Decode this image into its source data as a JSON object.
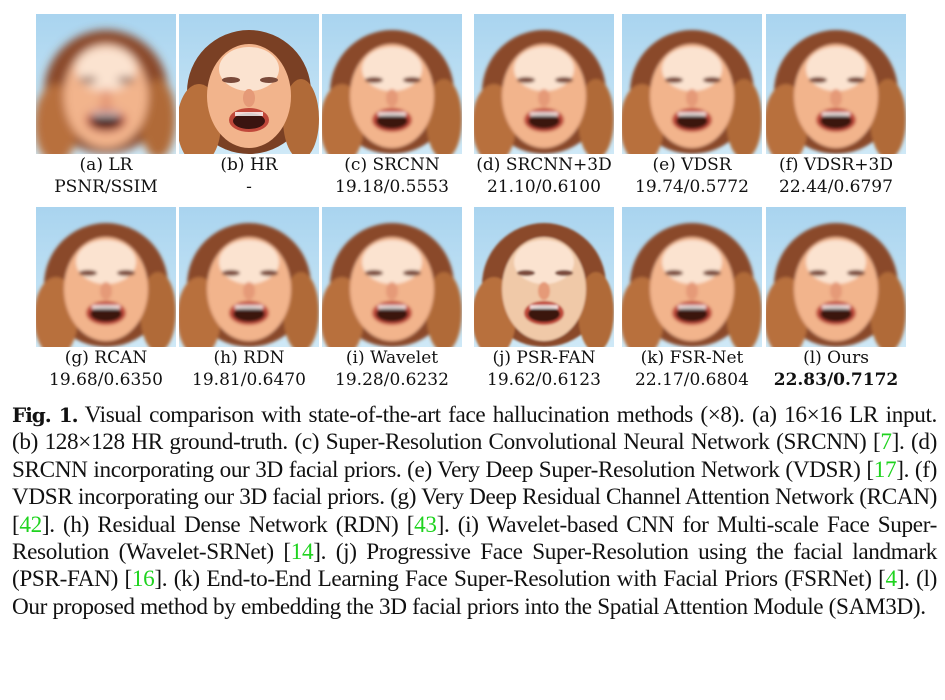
{
  "figure": {
    "rows": [
      [
        {
          "id": "a",
          "label": "(a) LR",
          "value": "PSNR/SSIM",
          "bold": false,
          "style": "blurry"
        },
        {
          "id": "b",
          "label": "(b) HR",
          "value": "-",
          "bold": false,
          "style": "sharp"
        },
        {
          "id": "c",
          "label": "(c) SRCNN",
          "value": "19.18/0.5553",
          "bold": false,
          "style": "soft"
        },
        {
          "id": "d",
          "label": "(d) SRCNN+3D",
          "value": "21.10/0.6100",
          "bold": false,
          "style": "soft"
        },
        {
          "id": "e",
          "label": "(e) VDSR",
          "value": "19.74/0.5772",
          "bold": false,
          "style": "soft"
        },
        {
          "id": "f",
          "label": "(f) VDSR+3D",
          "value": "22.44/0.6797",
          "bold": false,
          "style": "soft"
        }
      ],
      [
        {
          "id": "g",
          "label": "(g) RCAN",
          "value": "19.68/0.6350",
          "bold": false,
          "style": "soft"
        },
        {
          "id": "h",
          "label": "(h) RDN",
          "value": "19.81/0.6470",
          "bold": false,
          "style": "soft"
        },
        {
          "id": "i",
          "label": "(i) Wavelet",
          "value": "19.28/0.6232",
          "bold": false,
          "style": "soft"
        },
        {
          "id": "j",
          "label": "(j) PSR-FAN",
          "value": "19.62/0.6123",
          "bold": false,
          "style": "distorted"
        },
        {
          "id": "k",
          "label": "(k) FSR-Net",
          "value": "22.17/0.6804",
          "bold": false,
          "style": "soft"
        },
        {
          "id": "l",
          "label": "(l) Ours",
          "value": "22.83/0.7172",
          "bold": true,
          "style": "soft"
        }
      ]
    ]
  },
  "caption": {
    "fig_label": "Fig. 1.",
    "segments": [
      {
        "t": " Visual comparison with state-of-the-art face hallucination methods (×8). (a) 16×16 LR input. (b) 128×128 HR ground-truth. (c) Super-Resolution Convolutional Neural Network (SRCNN) ["
      },
      {
        "t": "7",
        "ref": true
      },
      {
        "t": "]. (d) SRCNN incorporating our 3D facial priors. (e) Very Deep Super-Resolution Network (VDSR) ["
      },
      {
        "t": "17",
        "ref": true
      },
      {
        "t": "]. (f) VDSR incorporating our 3D facial priors. (g) Very Deep Residual Channel Attention Network (RCAN) ["
      },
      {
        "t": "42",
        "ref": true
      },
      {
        "t": "]. (h) Residual Dense Network (RDN) ["
      },
      {
        "t": "43",
        "ref": true
      },
      {
        "t": "]. (i) Wavelet-based CNN for Multi-scale Face Super-Resolution (Wavelet-SRNet) ["
      },
      {
        "t": "14",
        "ref": true
      },
      {
        "t": "]. (j) Progressive Face Super-Resolution using the facial landmark (PSR-FAN) ["
      },
      {
        "t": "16",
        "ref": true
      },
      {
        "t": "]. (k) End-to-End Learning Face Super-Resolution with Facial Priors (FSRNet) ["
      },
      {
        "t": "4",
        "ref": true
      },
      {
        "t": "]. (l) Our proposed method by embedding the 3D facial priors into the Spatial Attention Module (SAM3D)."
      }
    ]
  },
  "colors": {
    "sky": "#bfe0f2",
    "hair": "#8a4a2a",
    "skin": "#f3b894",
    "mouth": "#3a1410",
    "ref": "#1fd31f"
  }
}
